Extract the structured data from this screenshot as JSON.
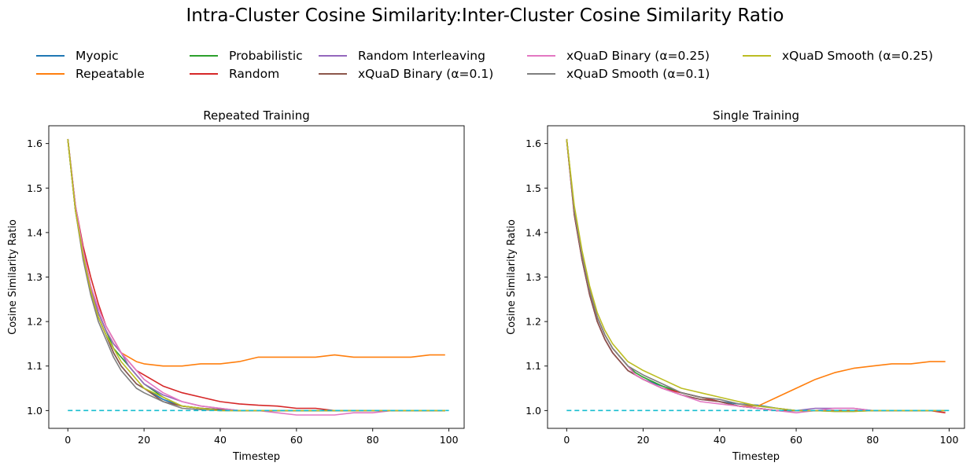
{
  "figure": {
    "suptitle": "Intra-Cluster Cosine Similarity:Inter-Cluster Cosine Similarity Ratio"
  },
  "legend": [
    {
      "label": "Myopic",
      "color": "#1f77b4"
    },
    {
      "label": "Repeatable",
      "color": "#ff7f0e"
    },
    {
      "label": "Probabilistic",
      "color": "#2ca02c"
    },
    {
      "label": "Random",
      "color": "#d62728"
    },
    {
      "label": "Random Interleaving",
      "color": "#9467bd"
    },
    {
      "label": "xQuaD Binary (α=0.1)",
      "color": "#8c564b"
    },
    {
      "label": "xQuaD Binary (α=0.25)",
      "color": "#e377c2"
    },
    {
      "label": "xQuaD Smooth (α=0.1)",
      "color": "#7f7f7f"
    },
    {
      "label": "xQuaD Smooth (α=0.25)",
      "color": "#bcbd22"
    }
  ],
  "chart_data": [
    {
      "type": "line",
      "title": "Repeated Training",
      "xlabel": "Timestep",
      "ylabel": "Cosine Similarity Ratio",
      "xlim": [
        -5,
        104
      ],
      "ylim": [
        0.96,
        1.64
      ],
      "xticks": [
        0,
        20,
        40,
        60,
        80,
        100
      ],
      "yticks": [
        1.0,
        1.1,
        1.2,
        1.3,
        1.4,
        1.5,
        1.6
      ],
      "x": [
        0,
        2,
        4,
        6,
        8,
        10,
        12,
        14,
        16,
        18,
        20,
        25,
        30,
        35,
        40,
        45,
        50,
        55,
        60,
        65,
        70,
        75,
        80,
        85,
        90,
        95,
        99
      ],
      "series": [
        {
          "name": "Myopic",
          "color": "#1f77b4",
          "values": [
            1.61,
            1.45,
            1.35,
            1.27,
            1.21,
            1.17,
            1.13,
            1.1,
            1.08,
            1.06,
            1.05,
            1.025,
            1.01,
            1.005,
            1.002,
            1.0,
            1.0,
            1.0,
            1.0,
            1.0,
            1.0,
            1.0,
            1.0,
            1.0,
            1.0,
            1.0,
            1.0
          ]
        },
        {
          "name": "Repeatable",
          "color": "#ff7f0e",
          "values": [
            1.61,
            1.46,
            1.36,
            1.28,
            1.22,
            1.18,
            1.15,
            1.13,
            1.12,
            1.11,
            1.105,
            1.1,
            1.1,
            1.105,
            1.105,
            1.11,
            1.12,
            1.12,
            1.12,
            1.12,
            1.125,
            1.12,
            1.12,
            1.12,
            1.12,
            1.125,
            1.125
          ]
        },
        {
          "name": "Probabilistic",
          "color": "#2ca02c",
          "values": [
            1.61,
            1.45,
            1.35,
            1.27,
            1.22,
            1.18,
            1.14,
            1.12,
            1.1,
            1.08,
            1.06,
            1.03,
            1.01,
            1.005,
            1.002,
            1.0,
            1.0,
            1.0,
            1.0,
            1.0,
            1.0,
            1.0,
            1.0,
            1.0,
            1.0,
            1.0,
            1.0
          ]
        },
        {
          "name": "Random",
          "color": "#d62728",
          "values": [
            1.61,
            1.46,
            1.37,
            1.3,
            1.24,
            1.19,
            1.16,
            1.13,
            1.11,
            1.09,
            1.08,
            1.055,
            1.04,
            1.03,
            1.02,
            1.015,
            1.012,
            1.01,
            1.005,
            1.005,
            1.0,
            1.0,
            1.0,
            1.0,
            1.0,
            1.0,
            1.0
          ]
        },
        {
          "name": "Random Interleaving",
          "color": "#9467bd",
          "values": [
            1.61,
            1.46,
            1.36,
            1.28,
            1.22,
            1.18,
            1.15,
            1.13,
            1.1,
            1.08,
            1.06,
            1.035,
            1.02,
            1.01,
            1.005,
            1.0,
            1.0,
            1.0,
            1.0,
            1.0,
            1.0,
            1.0,
            1.0,
            1.0,
            1.0,
            1.0,
            1.0
          ]
        },
        {
          "name": "xQuaD Binary (α=0.1)",
          "color": "#8c564b",
          "values": [
            1.61,
            1.45,
            1.35,
            1.27,
            1.21,
            1.17,
            1.13,
            1.1,
            1.08,
            1.06,
            1.05,
            1.02,
            1.01,
            1.005,
            1.002,
            1.0,
            1.0,
            1.0,
            1.0,
            1.0,
            1.0,
            1.0,
            1.0,
            1.0,
            1.0,
            1.0,
            1.0
          ]
        },
        {
          "name": "xQuaD Binary (α=0.25)",
          "color": "#e377c2",
          "values": [
            1.61,
            1.46,
            1.36,
            1.28,
            1.23,
            1.19,
            1.16,
            1.13,
            1.11,
            1.09,
            1.07,
            1.04,
            1.02,
            1.01,
            1.005,
            1.0,
            1.0,
            0.995,
            0.99,
            0.99,
            0.99,
            0.995,
            0.995,
            1.0,
            1.0,
            1.0,
            1.0
          ]
        },
        {
          "name": "xQuaD Smooth (α=0.1)",
          "color": "#7f7f7f",
          "values": [
            1.61,
            1.45,
            1.34,
            1.26,
            1.2,
            1.16,
            1.12,
            1.09,
            1.07,
            1.05,
            1.04,
            1.02,
            1.005,
            1.002,
            1.0,
            1.0,
            1.0,
            1.0,
            1.0,
            1.0,
            1.0,
            1.0,
            1.0,
            1.0,
            1.0,
            1.0,
            1.0
          ]
        },
        {
          "name": "xQuaD Smooth (α=0.25)",
          "color": "#bcbd22",
          "values": [
            1.61,
            1.45,
            1.35,
            1.27,
            1.21,
            1.17,
            1.14,
            1.11,
            1.09,
            1.07,
            1.05,
            1.03,
            1.01,
            1.005,
            1.0,
            1.0,
            1.0,
            1.0,
            1.0,
            1.0,
            1.0,
            1.0,
            1.0,
            1.0,
            1.0,
            1.0,
            1.0
          ]
        }
      ],
      "reference_line": {
        "y": 1.0,
        "x": [
          0,
          100
        ],
        "color": "#17becf",
        "style": "dashed"
      }
    },
    {
      "type": "line",
      "title": "Single Training",
      "xlabel": "Timestep",
      "ylabel": "Cosine Similarity Ratio",
      "xlim": [
        -5,
        104
      ],
      "ylim": [
        0.96,
        1.64
      ],
      "xticks": [
        0,
        20,
        40,
        60,
        80,
        100
      ],
      "yticks": [
        1.0,
        1.1,
        1.2,
        1.3,
        1.4,
        1.5,
        1.6
      ],
      "x": [
        0,
        2,
        4,
        6,
        8,
        10,
        12,
        14,
        16,
        18,
        20,
        25,
        30,
        35,
        40,
        45,
        50,
        55,
        60,
        65,
        70,
        75,
        80,
        85,
        90,
        95,
        99
      ],
      "series": [
        {
          "name": "Myopic",
          "color": "#1f77b4",
          "values": [
            1.61,
            1.45,
            1.35,
            1.27,
            1.21,
            1.17,
            1.14,
            1.12,
            1.1,
            1.08,
            1.07,
            1.055,
            1.04,
            1.03,
            1.02,
            1.015,
            1.012,
            1.005,
            1.0,
            1.0,
            1.0,
            1.0,
            1.0,
            1.0,
            1.0,
            1.0,
            1.0
          ]
        },
        {
          "name": "Repeatable",
          "color": "#ff7f0e",
          "values": [
            1.61,
            1.45,
            1.35,
            1.27,
            1.21,
            1.17,
            1.14,
            1.12,
            1.1,
            1.08,
            1.07,
            1.05,
            1.04,
            1.03,
            1.02,
            1.01,
            1.01,
            1.03,
            1.05,
            1.07,
            1.085,
            1.095,
            1.1,
            1.105,
            1.105,
            1.11,
            1.11
          ]
        },
        {
          "name": "Probabilistic",
          "color": "#2ca02c",
          "values": [
            1.61,
            1.45,
            1.35,
            1.27,
            1.21,
            1.17,
            1.14,
            1.12,
            1.1,
            1.085,
            1.075,
            1.055,
            1.04,
            1.03,
            1.02,
            1.01,
            1.005,
            1.0,
            1.0,
            1.0,
            1.0,
            1.0,
            1.0,
            1.0,
            1.0,
            1.0,
            1.0
          ]
        },
        {
          "name": "Random",
          "color": "#d62728",
          "values": [
            1.61,
            1.44,
            1.34,
            1.26,
            1.2,
            1.16,
            1.13,
            1.11,
            1.09,
            1.08,
            1.07,
            1.05,
            1.04,
            1.03,
            1.02,
            1.01,
            1.005,
            1.0,
            1.0,
            1.0,
            1.0,
            1.0,
            1.0,
            1.0,
            1.0,
            1.0,
            0.995
          ]
        },
        {
          "name": "Random Interleaving",
          "color": "#9467bd",
          "values": [
            1.61,
            1.45,
            1.34,
            1.26,
            1.2,
            1.16,
            1.13,
            1.11,
            1.09,
            1.08,
            1.07,
            1.05,
            1.035,
            1.025,
            1.02,
            1.01,
            1.005,
            1.0,
            1.0,
            1.005,
            1.005,
            1.005,
            1.0,
            1.0,
            1.0,
            1.0,
            1.0
          ]
        },
        {
          "name": "xQuaD Binary (α=0.1)",
          "color": "#8c564b",
          "values": [
            1.61,
            1.44,
            1.34,
            1.26,
            1.2,
            1.16,
            1.13,
            1.11,
            1.09,
            1.08,
            1.07,
            1.05,
            1.035,
            1.025,
            1.02,
            1.01,
            1.005,
            1.0,
            1.0,
            1.0,
            1.0,
            1.0,
            1.0,
            1.0,
            1.0,
            1.0,
            1.0
          ]
        },
        {
          "name": "xQuaD Binary (α=0.25)",
          "color": "#e377c2",
          "values": [
            1.61,
            1.45,
            1.35,
            1.27,
            1.21,
            1.17,
            1.14,
            1.12,
            1.1,
            1.08,
            1.07,
            1.05,
            1.035,
            1.02,
            1.015,
            1.01,
            1.005,
            1.0,
            0.995,
            1.0,
            1.005,
            1.005,
            1.0,
            1.0,
            1.0,
            1.0,
            1.0
          ]
        },
        {
          "name": "xQuaD Smooth (α=0.1)",
          "color": "#7f7f7f",
          "values": [
            1.61,
            1.45,
            1.35,
            1.27,
            1.21,
            1.17,
            1.14,
            1.12,
            1.1,
            1.09,
            1.08,
            1.06,
            1.04,
            1.03,
            1.025,
            1.015,
            1.01,
            1.005,
            1.0,
            1.0,
            0.998,
            0.998,
            1.0,
            1.0,
            1.0,
            1.0,
            1.0
          ]
        },
        {
          "name": "xQuaD Smooth (α=0.25)",
          "color": "#bcbd22",
          "values": [
            1.61,
            1.46,
            1.36,
            1.28,
            1.22,
            1.18,
            1.15,
            1.13,
            1.11,
            1.1,
            1.09,
            1.07,
            1.05,
            1.04,
            1.03,
            1.02,
            1.01,
            1.005,
            1.0,
            1.0,
            0.998,
            0.998,
            1.0,
            1.0,
            1.0,
            1.0,
            1.0
          ]
        }
      ],
      "reference_line": {
        "y": 1.0,
        "x": [
          0,
          100
        ],
        "color": "#17becf",
        "style": "dashed"
      }
    }
  ]
}
